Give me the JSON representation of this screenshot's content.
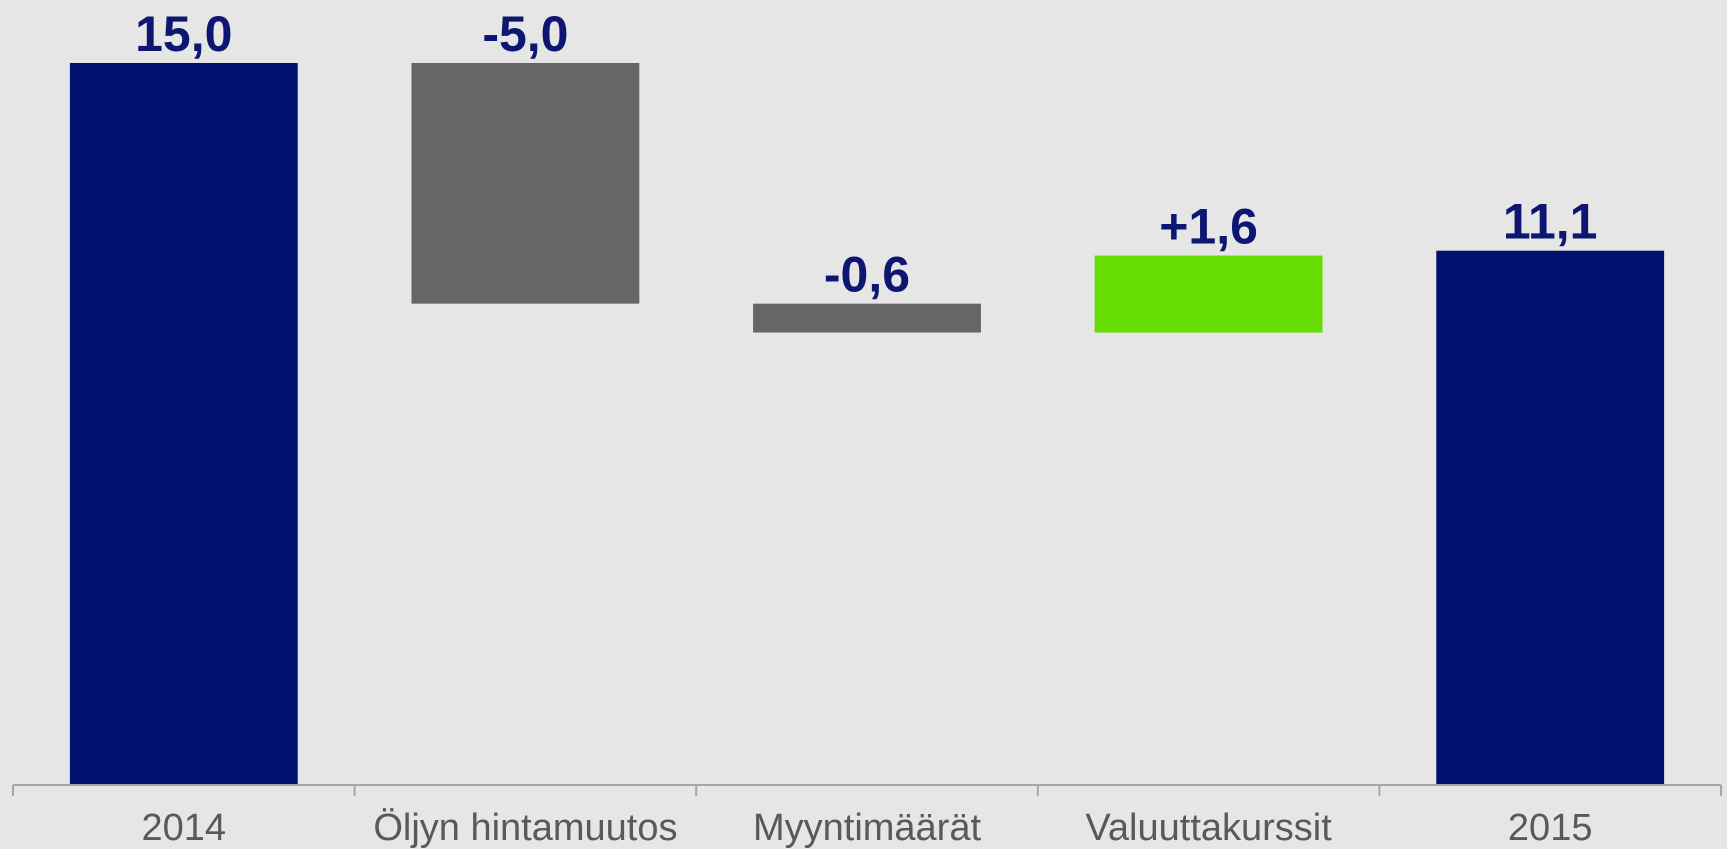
{
  "chart_data": {
    "type": "waterfall",
    "categories": [
      "2014",
      "Öljyn hintamuutos",
      "Myyntimäärät",
      "Valuuttakurssit",
      "2015"
    ],
    "values": [
      15.0,
      -5.0,
      -0.6,
      1.6,
      11.1
    ],
    "value_labels": [
      "15,0",
      "-5,0",
      "-0,6",
      "+1,6",
      "11,1"
    ],
    "totals": [
      true,
      false,
      false,
      false,
      true
    ],
    "colors": [
      "#00126e",
      "#666666",
      "#666666",
      "#66dd00",
      "#00126e"
    ],
    "ylim": [
      0,
      15
    ]
  }
}
